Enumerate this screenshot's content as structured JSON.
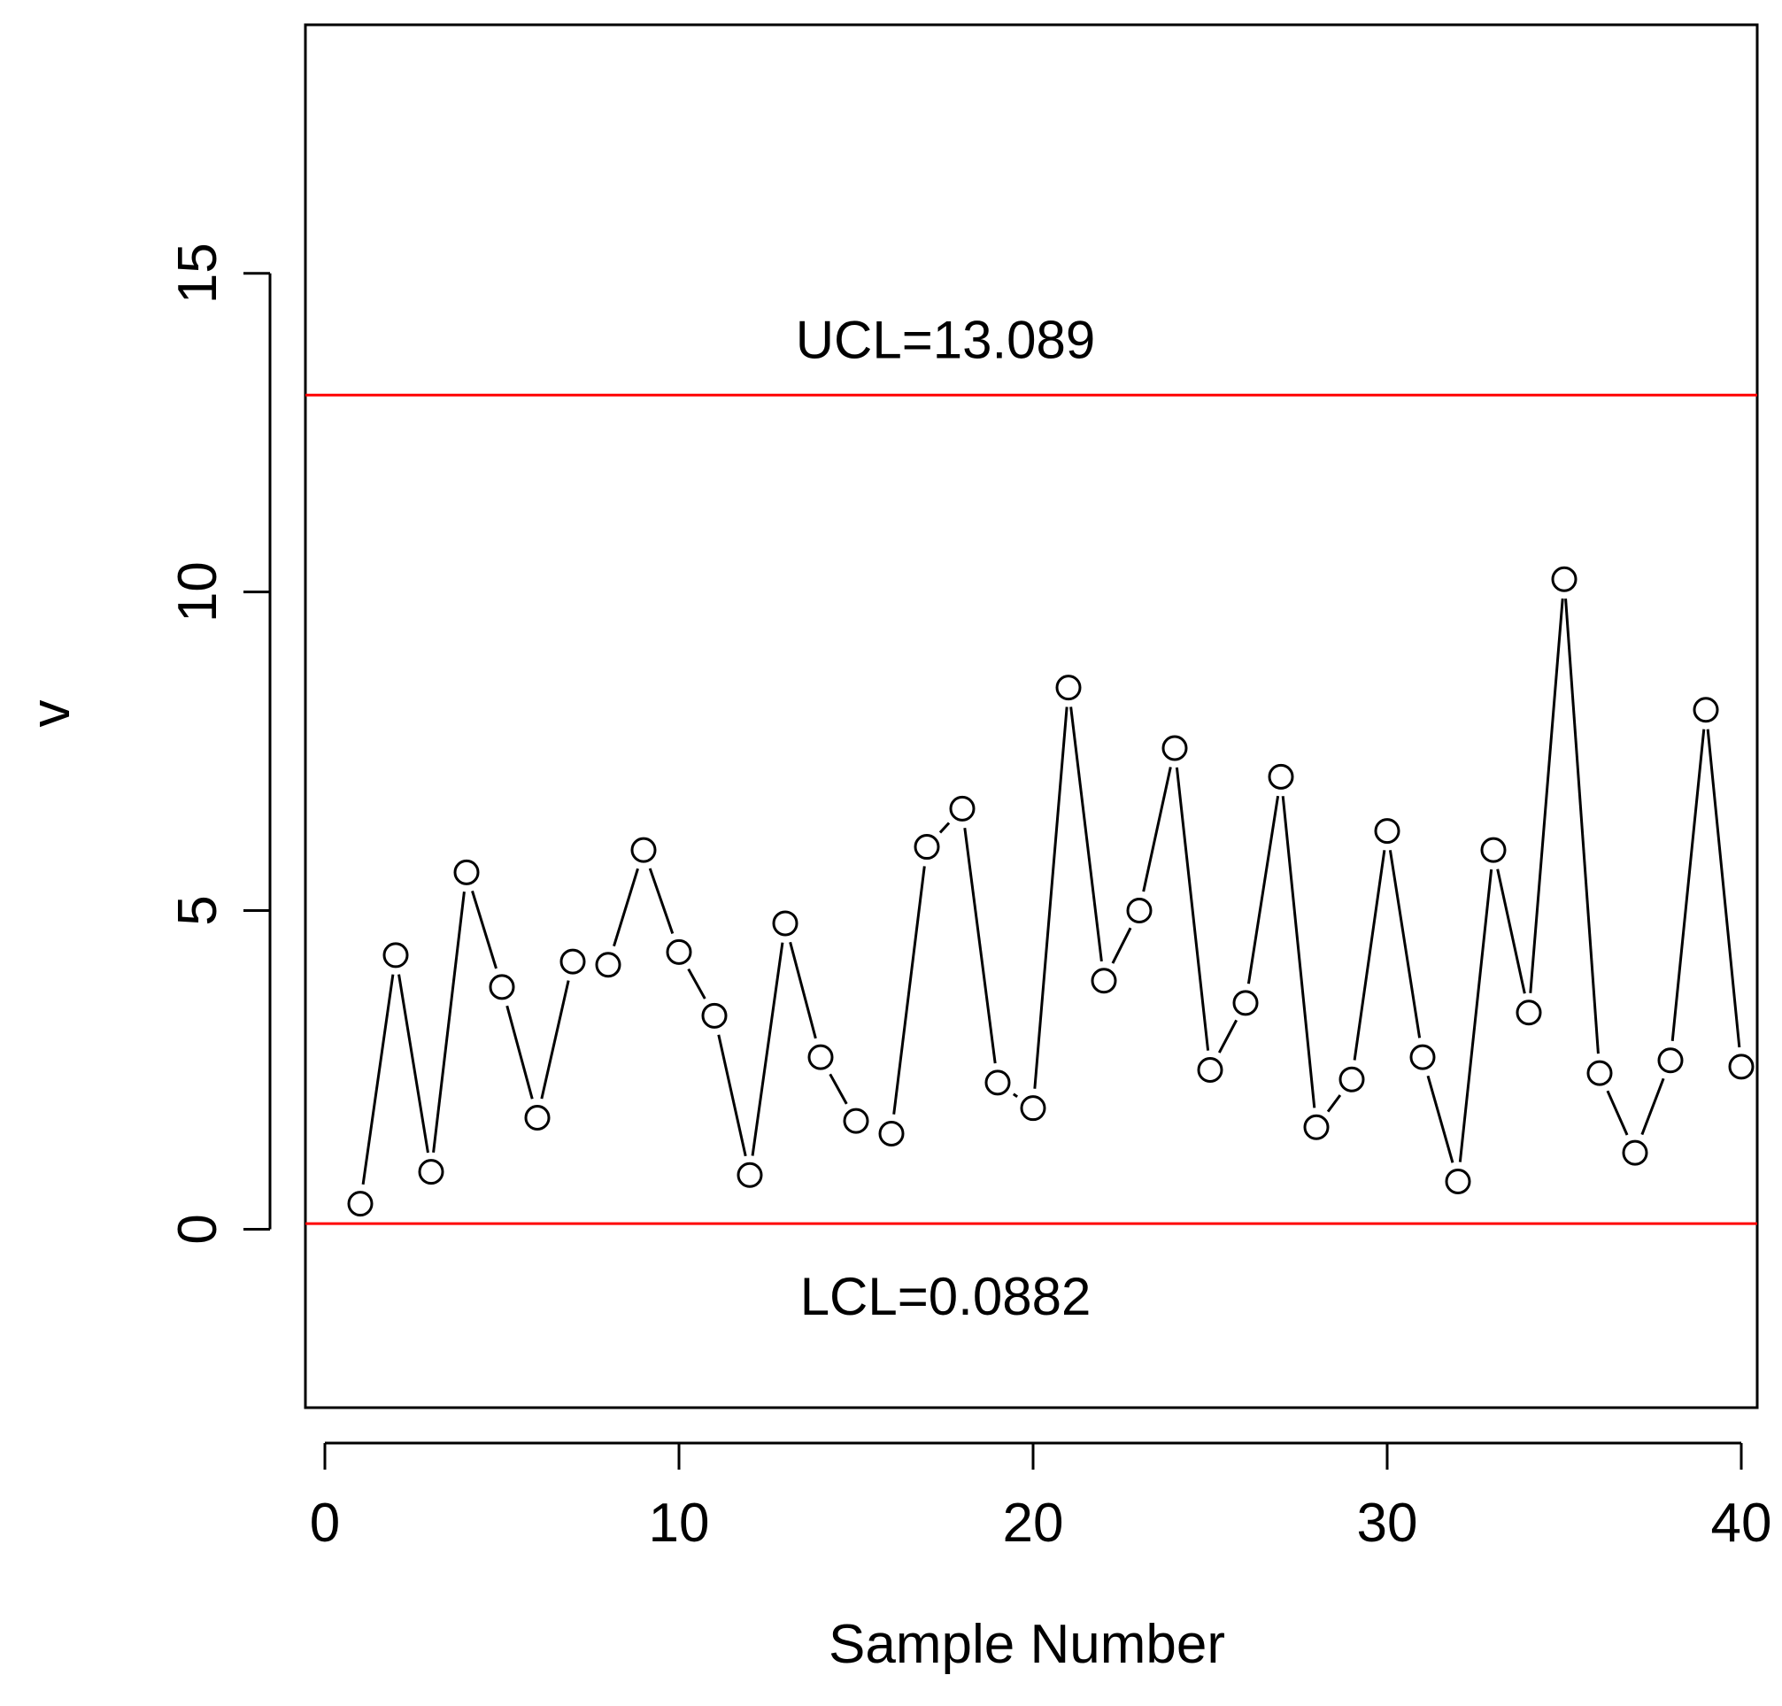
{
  "chart_data": {
    "type": "line",
    "title": "",
    "xlabel": "Sample Number",
    "ylabel": "v",
    "xlim": [
      0,
      41
    ],
    "ylim": [
      -2.8,
      18.9
    ],
    "x_ticks": [
      0,
      10,
      20,
      30,
      40
    ],
    "y_ticks": [
      0,
      5,
      10,
      15
    ],
    "x_tick_labels": [
      "0",
      "10",
      "20",
      "30",
      "40"
    ],
    "y_tick_labels": [
      "0",
      "5",
      "10",
      "15"
    ],
    "grid": false,
    "series": [
      {
        "x": [
          1,
          2,
          3,
          4,
          5,
          6,
          7,
          8,
          9,
          10,
          11,
          12,
          13,
          14,
          15,
          16,
          17,
          18,
          19,
          20,
          21,
          22,
          23,
          24,
          25,
          26,
          27,
          28,
          29,
          30,
          31,
          32,
          33,
          34,
          35,
          36,
          37,
          38,
          39,
          40
        ],
        "values": [
          0.4,
          4.3,
          0.9,
          5.6,
          3.8,
          1.75,
          4.2,
          4.15,
          5.95,
          4.35,
          3.35,
          0.85,
          4.8,
          2.7,
          1.7,
          1.5,
          6.0,
          6.6,
          2.3,
          1.9,
          8.5,
          3.9,
          5.0,
          7.55,
          2.5,
          3.55,
          7.1,
          1.6,
          2.35,
          6.25,
          2.7,
          0.75,
          5.95,
          3.4,
          10.2,
          2.45,
          1.2,
          2.65,
          8.15,
          2.55
        ],
        "color": "#000000",
        "marker": "open-circle"
      }
    ],
    "control_limits": [
      {
        "label": "UCL=13.089",
        "value": 13.089,
        "color": "#ff0000"
      },
      {
        "label": "LCL=0.0882",
        "value": 0.0882,
        "color": "#ff0000"
      }
    ]
  }
}
